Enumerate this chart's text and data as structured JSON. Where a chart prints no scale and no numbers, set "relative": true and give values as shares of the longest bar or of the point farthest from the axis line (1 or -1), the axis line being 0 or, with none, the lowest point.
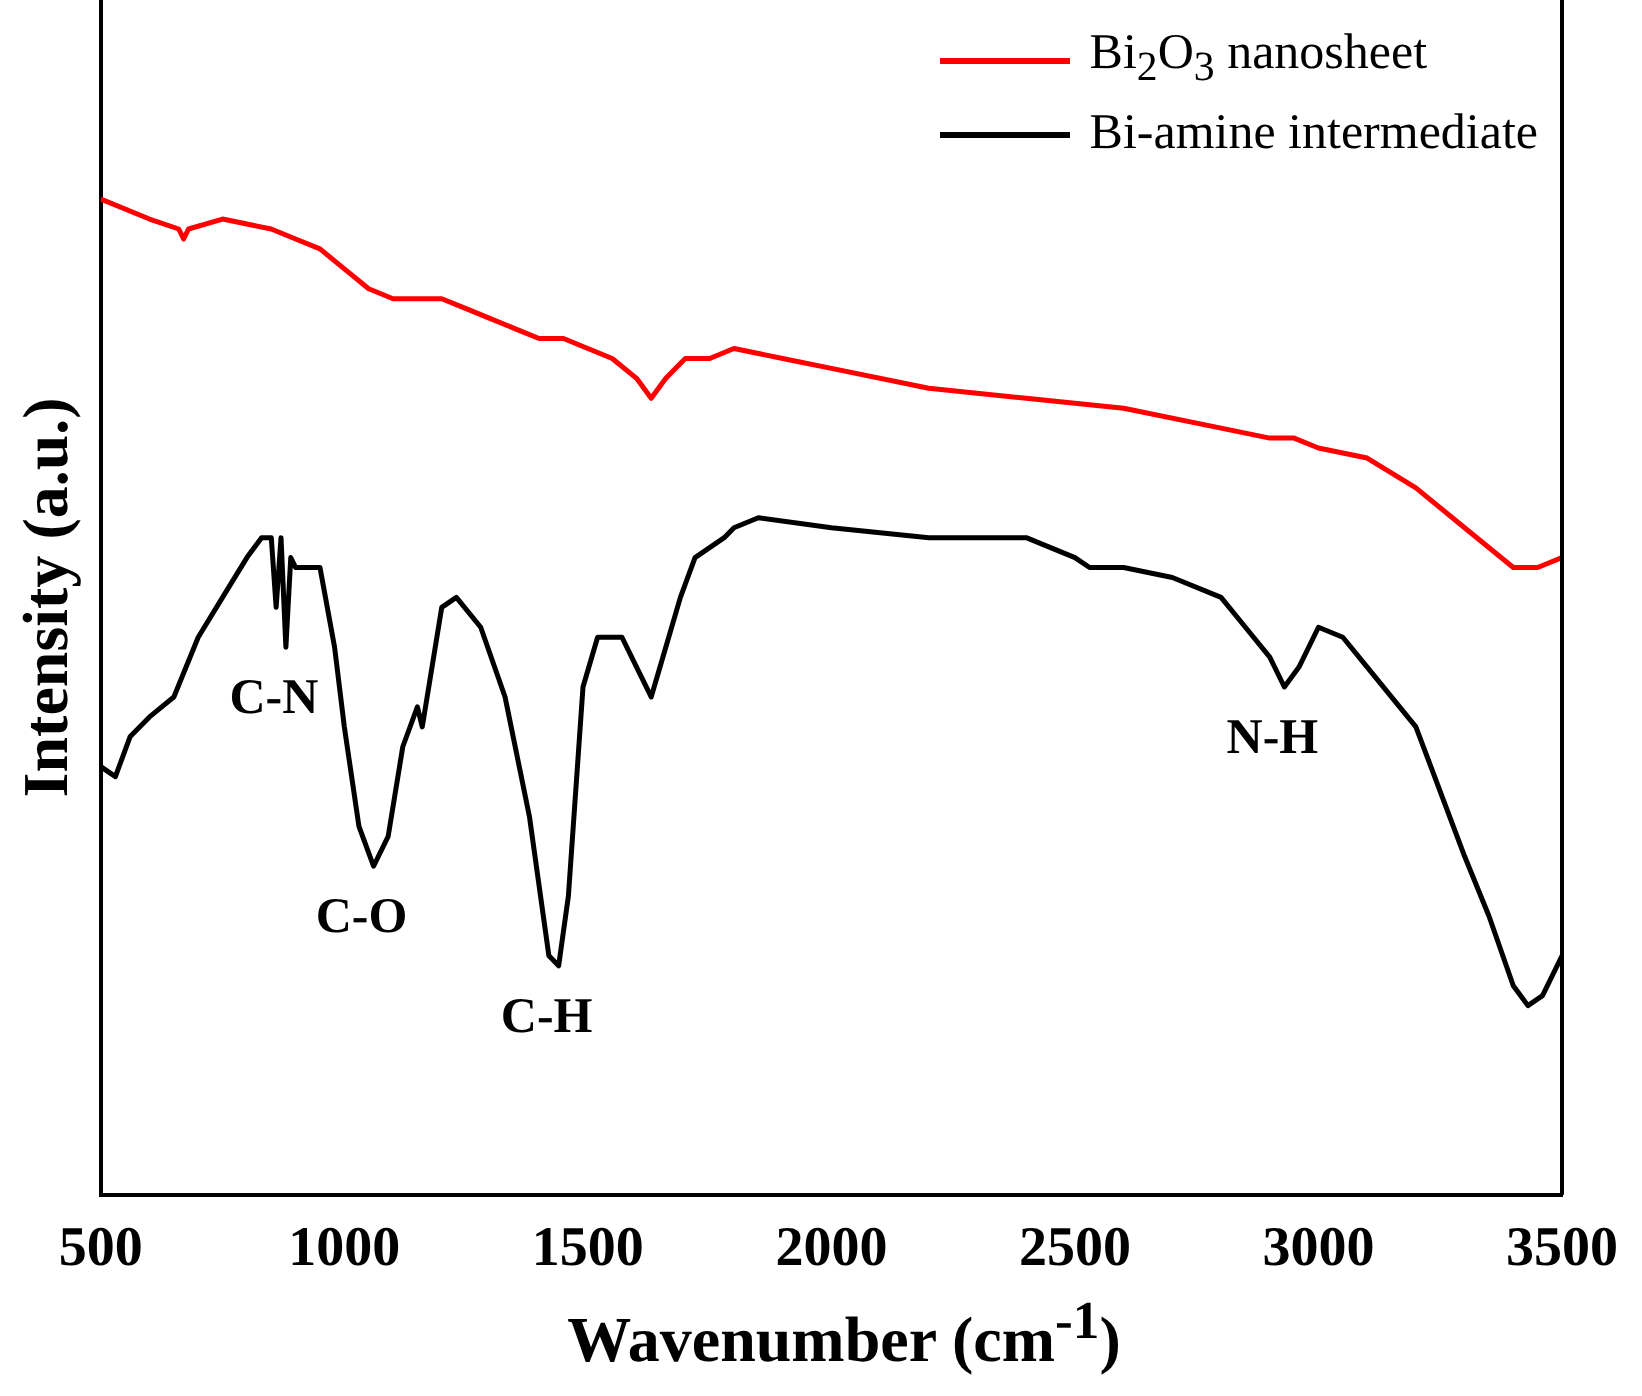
{
  "chart_data": {
    "type": "line",
    "relative": true,
    "xlabel": "Wavenumber (cm$^{-1}$)",
    "ylabel": "Intensity (a.u.)",
    "xlim": [
      500,
      3500
    ],
    "xticks": [
      500,
      1000,
      1500,
      2000,
      2500,
      3000,
      3500
    ],
    "legend": "top right",
    "grid": false,
    "marker": "none",
    "line_style": "solid",
    "x": [
      500,
      600,
      660,
      670,
      680,
      750,
      850,
      900,
      950,
      1000,
      1050,
      1100,
      1200,
      1250,
      1300,
      1350,
      1400,
      1450,
      1500,
      1550,
      1600,
      1630,
      1660,
      1700,
      1750,
      1800,
      1900,
      2000,
      2200,
      2400,
      2600,
      2800,
      2900,
      2950,
      3000,
      3100,
      3200,
      3300,
      3400,
      3450,
      3500
    ],
    "series": [
      {
        "name": "Bi$_{2}$O$_{3}$ nanosheet",
        "color": "#ff0000",
        "values": [
          1.0,
          0.98,
          0.97,
          0.96,
          0.97,
          0.98,
          0.97,
          0.96,
          0.95,
          0.93,
          0.91,
          0.9,
          0.9,
          0.89,
          0.88,
          0.87,
          0.86,
          0.86,
          0.85,
          0.84,
          0.82,
          0.8,
          0.82,
          0.84,
          0.84,
          0.85,
          0.84,
          0.83,
          0.81,
          0.8,
          0.79,
          0.77,
          0.76,
          0.76,
          0.75,
          0.74,
          0.71,
          0.67,
          0.63,
          0.63,
          0.64
        ]
      },
      {
        "name": "Bi-amine intermediate",
        "color": "#000000",
        "x": [
          500,
          530,
          560,
          600,
          650,
          700,
          750,
          800,
          830,
          850,
          860,
          870,
          880,
          890,
          900,
          950,
          980,
          1000,
          1030,
          1060,
          1090,
          1120,
          1150,
          1160,
          1200,
          1230,
          1280,
          1330,
          1380,
          1420,
          1440,
          1460,
          1490,
          1520,
          1570,
          1600,
          1630,
          1660,
          1690,
          1720,
          1780,
          1800,
          1850,
          2000,
          2200,
          2400,
          2500,
          2530,
          2600,
          2700,
          2800,
          2850,
          2900,
          2930,
          2960,
          3000,
          3050,
          3100,
          3200,
          3300,
          3350,
          3400,
          3430,
          3460,
          3500
        ],
        "values": [
          0.43,
          0.42,
          0.46,
          0.48,
          0.5,
          0.56,
          0.6,
          0.64,
          0.66,
          0.66,
          0.59,
          0.66,
          0.55,
          0.64,
          0.63,
          0.63,
          0.55,
          0.47,
          0.37,
          0.33,
          0.36,
          0.45,
          0.49,
          0.47,
          0.59,
          0.6,
          0.57,
          0.5,
          0.38,
          0.24,
          0.23,
          0.3,
          0.51,
          0.56,
          0.56,
          0.53,
          0.5,
          0.55,
          0.6,
          0.64,
          0.66,
          0.67,
          0.68,
          0.67,
          0.66,
          0.66,
          0.64,
          0.63,
          0.63,
          0.62,
          0.6,
          0.57,
          0.54,
          0.51,
          0.53,
          0.57,
          0.56,
          0.53,
          0.47,
          0.34,
          0.28,
          0.21,
          0.19,
          0.2,
          0.24
        ]
      }
    ],
    "annotations": [
      {
        "text": "C-N",
        "x": 880,
        "y": 0.55
      },
      {
        "text": "C-O",
        "x": 1060,
        "y": 0.33
      },
      {
        "text": "C-H",
        "x": 1440,
        "y": 0.23
      },
      {
        "text": "N-H",
        "x": 2930,
        "y": 0.51
      }
    ]
  }
}
